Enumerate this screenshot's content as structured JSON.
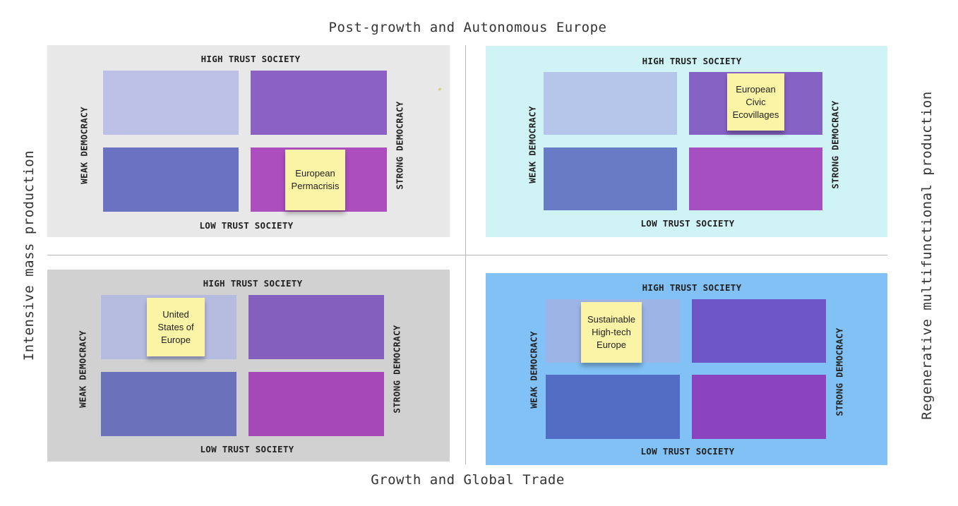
{
  "axes": {
    "top": "Post-growth and Autonomous Europe",
    "bottom": "Growth and Global Trade",
    "left": "Intensive mass production",
    "right": "Regenerative multifunctional production"
  },
  "labels": {
    "high_trust": "HIGH TRUST SOCIETY",
    "low_trust": "LOW TRUST SOCIETY",
    "weak_democracy": "WEAK DEMOCRACY",
    "strong_democracy": "STRONG DEMOCRACY"
  },
  "colors": {
    "panel_top_left": "#e8e8e8",
    "panel_top_right": "#d0f4f6",
    "panel_bottom_left": "#d1d1d1",
    "panel_bottom_right": "#82c1f5",
    "sticky_note": "#fbf3a5"
  },
  "notes": {
    "top_left": "European\nPermacrisis",
    "top_right": "European\nCivic\nEcovillages",
    "bottom_left": "United\nStates of\nEurope",
    "bottom_right": "Sustainable\nHigh-tech\nEurope"
  }
}
